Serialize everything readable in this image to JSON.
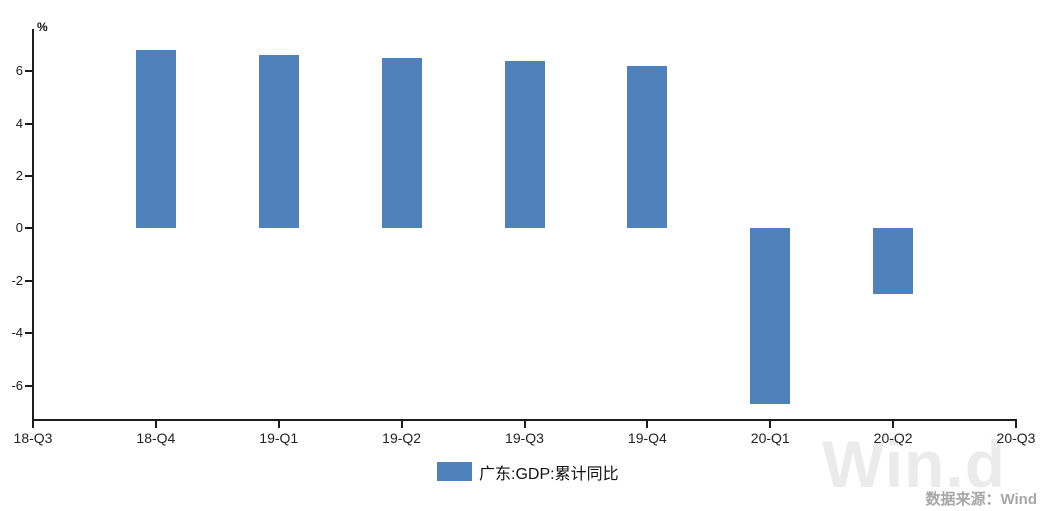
{
  "chart_data": {
    "type": "bar",
    "title": "",
    "unit": "%",
    "categories": [
      "18-Q3",
      "18-Q4",
      "19-Q1",
      "19-Q2",
      "19-Q3",
      "19-Q4",
      "20-Q1",
      "20-Q2",
      "20-Q3"
    ],
    "series": [
      {
        "name": "广东:GDP:累计同比",
        "values": [
          null,
          6.8,
          6.6,
          6.5,
          6.4,
          6.2,
          -6.7,
          -2.5,
          null
        ]
      }
    ],
    "yticks": [
      6,
      4,
      2,
      0,
      -2,
      -4,
      -6
    ],
    "ylim": [
      -7.3,
      7.6
    ],
    "xlabel": "",
    "ylabel": "%",
    "grid": false,
    "legend_position": "bottom-center",
    "bar_color": "#4f81bd"
  },
  "legend": {
    "label": "广东:GDP:累计同比",
    "swatch_color": "#4f81bd"
  },
  "footer": {
    "watermark": "Win.d",
    "source": "数据来源：Wind"
  },
  "colors": {
    "bar": "#4f81bd",
    "axis": "#1c1c1c",
    "watermark": "#ebebeb",
    "source_text": "#a6a6a6",
    "background": "#ffffff"
  }
}
